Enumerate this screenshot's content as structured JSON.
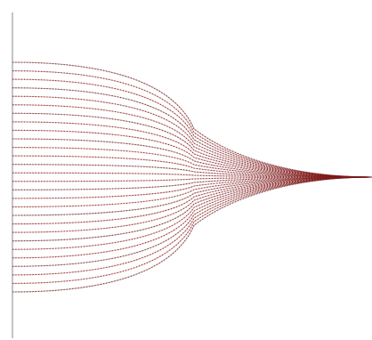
{
  "diagram": {
    "kind": "converging-trajectories",
    "line_count": 28,
    "line_style": "dotted-with-solid-start",
    "colors": {
      "background": "#ffffff",
      "axis": "#8a8a8a",
      "line": "#8b1a1a",
      "line_dark": "#3a2020"
    }
  }
}
